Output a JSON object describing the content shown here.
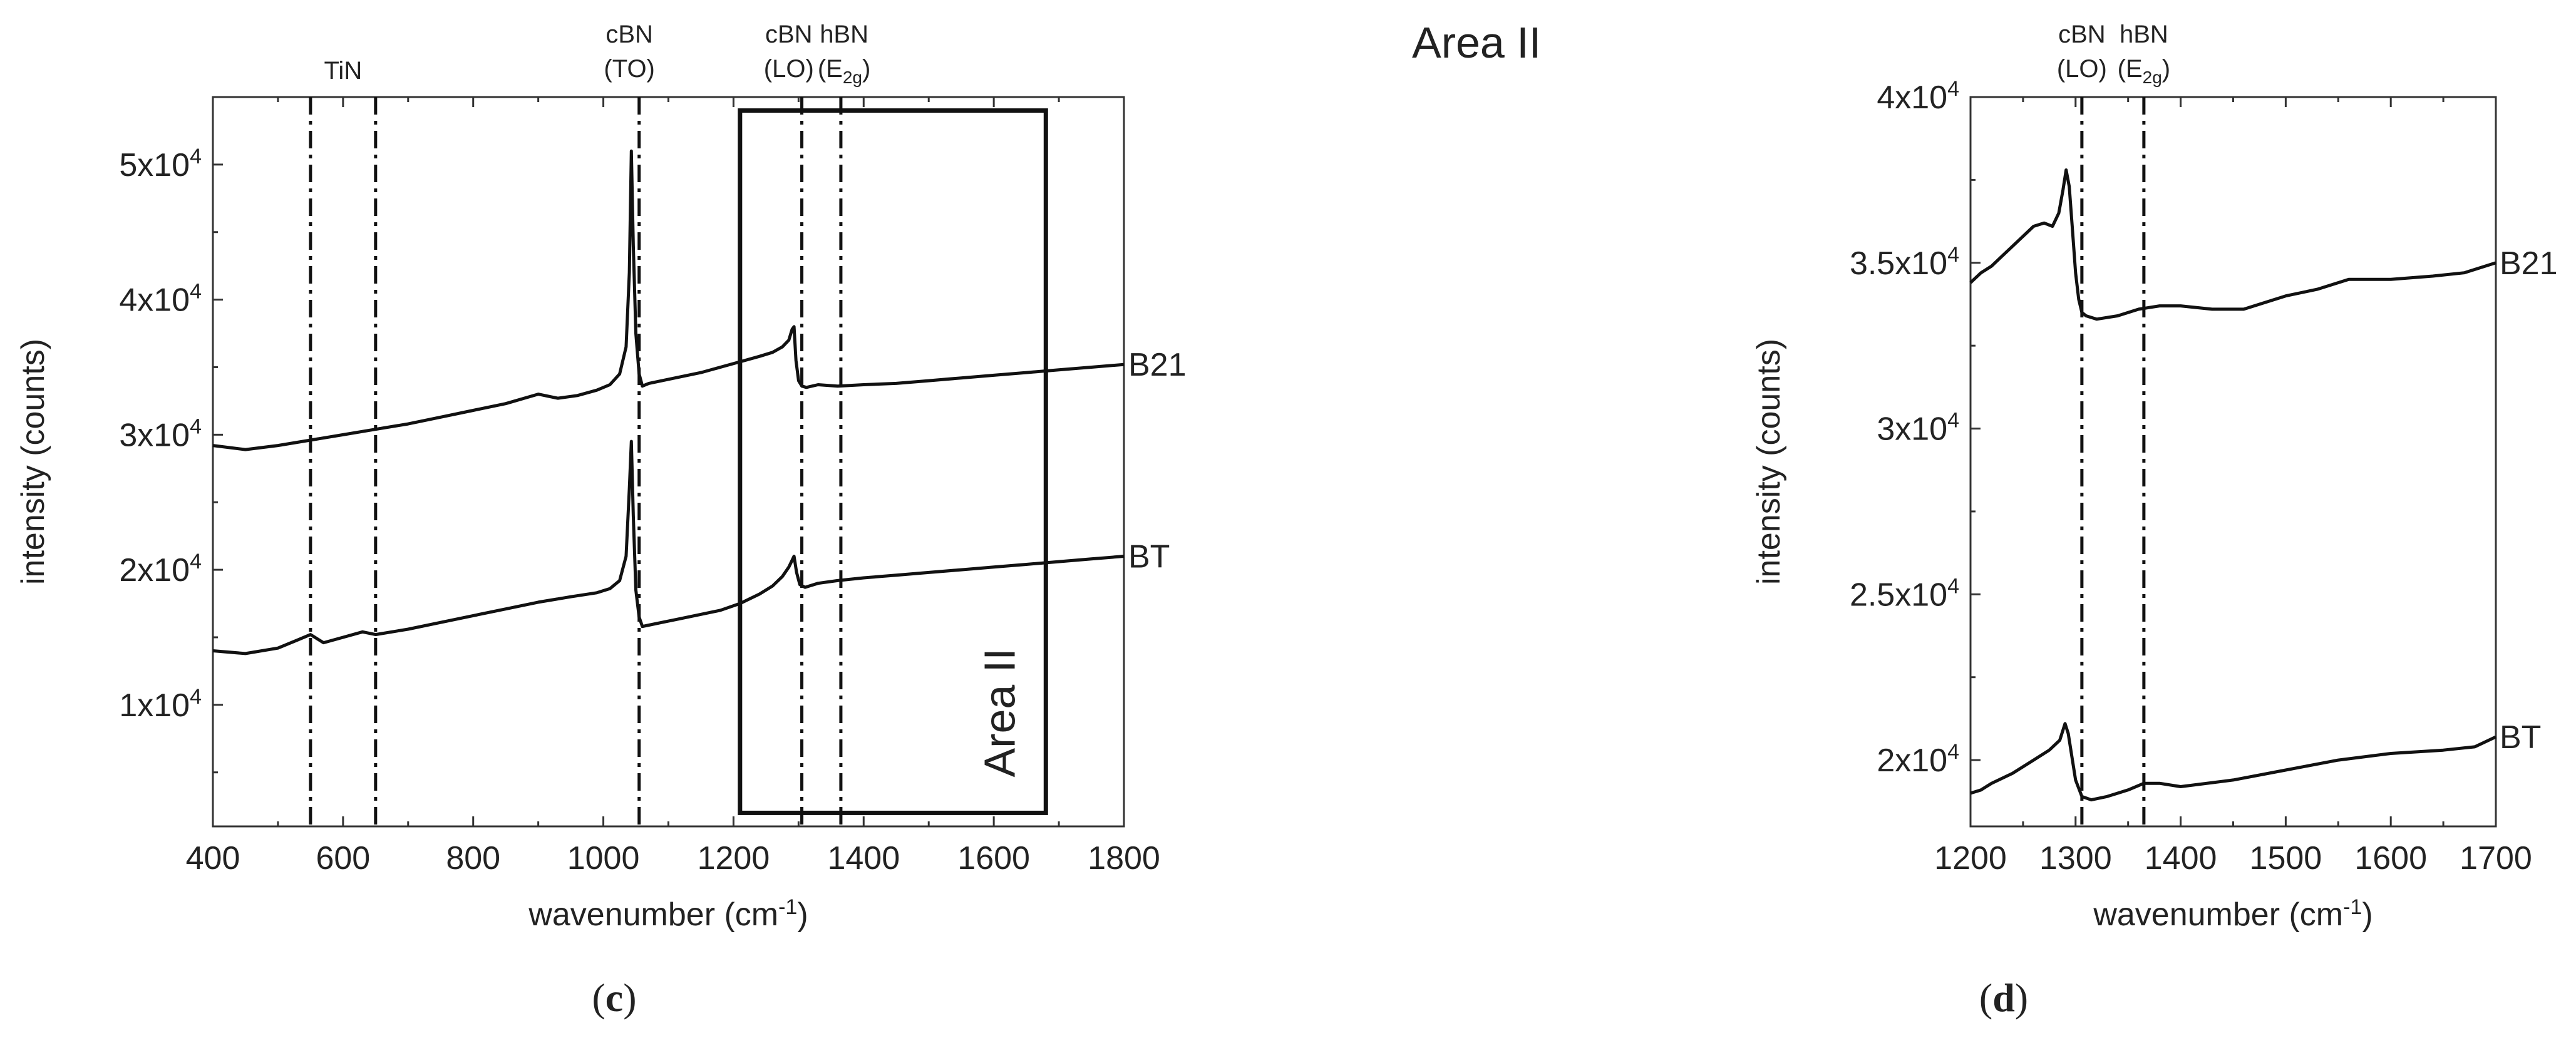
{
  "figure": {
    "panels": [
      {
        "label_open": "(",
        "label_letter": "c",
        "label_close": ")"
      },
      {
        "label_open": "(",
        "label_letter": "d",
        "label_close": ")"
      }
    ]
  },
  "chart_data": [
    {
      "type": "line",
      "panel": "c",
      "title": "",
      "xlabel": "wavenumber (cm⁻¹)",
      "xlabel_base": "wavenumber (cm",
      "xlabel_sup": "-1",
      "xlabel_end": ")",
      "ylabel": "intensity (counts)",
      "xlim": [
        400,
        1800
      ],
      "ylim": [
        1000,
        55000
      ],
      "x_ticks": [
        400,
        600,
        800,
        1000,
        1200,
        1400,
        1600,
        1800
      ],
      "x_tick_labels": [
        "400",
        "600",
        "800",
        "1000",
        "1200",
        "1400",
        "1600",
        "1800"
      ],
      "y_ticks": [
        10000,
        20000,
        30000,
        40000,
        50000
      ],
      "y_tick_labels": [
        {
          "base": "1x10",
          "exp": "4"
        },
        {
          "base": "2x10",
          "exp": "4"
        },
        {
          "base": "3x10",
          "exp": "4"
        },
        {
          "base": "4x10",
          "exp": "4"
        },
        {
          "base": "5x10",
          "exp": "4"
        }
      ],
      "reference_lines": [
        {
          "x": 550,
          "label_lines": [
            "TiN"
          ],
          "label_x": 600
        },
        {
          "x": 650,
          "label_lines": [],
          "label_x": 650
        },
        {
          "x": 1055,
          "label_lines": [
            "cBN",
            "(TO)"
          ],
          "label_x": 1040
        },
        {
          "x": 1305,
          "label_lines": [
            "cBN",
            "(LO)"
          ],
          "label_x": 1285
        },
        {
          "x": 1365,
          "label_lines": [
            "hBN",
            "(E2g)"
          ],
          "label_x": 1370
        }
      ],
      "annotation_box": {
        "x0": 1210,
        "x1": 1680,
        "y0": 2000,
        "y1": 54000,
        "label": "Area II"
      },
      "series": [
        {
          "name": "B21",
          "x": [
            400,
            450,
            500,
            550,
            600,
            650,
            700,
            750,
            800,
            850,
            900,
            930,
            960,
            990,
            1010,
            1025,
            1035,
            1040,
            1043,
            1046,
            1050,
            1055,
            1060,
            1070,
            1090,
            1120,
            1150,
            1180,
            1210,
            1240,
            1260,
            1275,
            1285,
            1290,
            1293,
            1296,
            1300,
            1305,
            1312,
            1330,
            1360,
            1400,
            1450,
            1500,
            1550,
            1600,
            1650,
            1700,
            1750,
            1800
          ],
          "values": [
            29200,
            28900,
            29200,
            29600,
            30000,
            30400,
            30800,
            31300,
            31800,
            32300,
            33000,
            32700,
            32900,
            33300,
            33700,
            34500,
            36500,
            42000,
            51000,
            44000,
            37500,
            34500,
            33600,
            33800,
            34000,
            34300,
            34600,
            35000,
            35400,
            35800,
            36100,
            36500,
            37000,
            37800,
            38000,
            35500,
            34000,
            33600,
            33500,
            33700,
            33600,
            33700,
            33800,
            34000,
            34200,
            34400,
            34600,
            34800,
            35000,
            35200
          ]
        },
        {
          "name": "BT",
          "x": [
            400,
            450,
            500,
            530,
            550,
            570,
            600,
            630,
            650,
            700,
            750,
            800,
            850,
            900,
            950,
            990,
            1010,
            1025,
            1035,
            1040,
            1043,
            1046,
            1050,
            1055,
            1060,
            1070,
            1090,
            1120,
            1150,
            1180,
            1210,
            1240,
            1260,
            1275,
            1285,
            1290,
            1293,
            1297,
            1302,
            1310,
            1330,
            1360,
            1400,
            1450,
            1500,
            1550,
            1600,
            1650,
            1700,
            1750,
            1800
          ],
          "values": [
            14000,
            13800,
            14200,
            14800,
            15200,
            14600,
            15000,
            15400,
            15200,
            15600,
            16100,
            16600,
            17100,
            17600,
            18000,
            18300,
            18600,
            19200,
            21000,
            26000,
            29500,
            24000,
            18500,
            16500,
            15800,
            15900,
            16100,
            16400,
            16700,
            17000,
            17500,
            18200,
            18800,
            19500,
            20200,
            20700,
            21000,
            19800,
            18900,
            18700,
            19000,
            19200,
            19400,
            19600,
            19800,
            20000,
            20200,
            20400,
            20600,
            20800,
            21000
          ]
        }
      ]
    },
    {
      "type": "line",
      "panel": "d",
      "title": "Area II",
      "xlabel": "wavenumber (cm⁻¹)",
      "xlabel_base": "wavenumber (cm",
      "xlabel_sup": "-1",
      "xlabel_end": ")",
      "ylabel": "intensity (counts)",
      "xlim": [
        1200,
        1700
      ],
      "ylim": [
        18000,
        40000
      ],
      "x_ticks": [
        1200,
        1300,
        1400,
        1500,
        1600,
        1700
      ],
      "x_tick_labels": [
        "1200",
        "1300",
        "1400",
        "1500",
        "1600",
        "1700"
      ],
      "y_ticks": [
        20000,
        25000,
        30000,
        35000,
        40000
      ],
      "y_tick_labels": [
        {
          "base": "2x10",
          "exp": "4"
        },
        {
          "base": "2.5x10",
          "exp": "4"
        },
        {
          "base": "3x10",
          "exp": "4"
        },
        {
          "base": "3.5x10",
          "exp": "4"
        },
        {
          "base": "4x10",
          "exp": "4"
        }
      ],
      "reference_lines": [
        {
          "x": 1306,
          "label_lines": [
            "cBN",
            "(LO)"
          ],
          "label_x": 1306
        },
        {
          "x": 1365,
          "label_lines": [
            "hBN",
            "(E2g)"
          ],
          "label_x": 1365
        }
      ],
      "series": [
        {
          "name": "B21",
          "x": [
            1200,
            1210,
            1220,
            1230,
            1240,
            1250,
            1260,
            1270,
            1278,
            1284,
            1288,
            1291,
            1294,
            1297,
            1300,
            1303,
            1306,
            1310,
            1320,
            1340,
            1360,
            1380,
            1400,
            1430,
            1460,
            1500,
            1530,
            1560,
            1600,
            1640,
            1670,
            1700
          ],
          "values": [
            34400,
            34700,
            34900,
            35200,
            35500,
            35800,
            36100,
            36200,
            36100,
            36500,
            37200,
            37800,
            37300,
            36000,
            34700,
            33900,
            33500,
            33400,
            33300,
            33400,
            33600,
            33700,
            33700,
            33600,
            33600,
            34000,
            34200,
            34500,
            34500,
            34600,
            34700,
            35000
          ]
        },
        {
          "name": "BT",
          "x": [
            1200,
            1210,
            1220,
            1240,
            1260,
            1275,
            1285,
            1290,
            1293,
            1296,
            1300,
            1306,
            1315,
            1330,
            1350,
            1365,
            1380,
            1400,
            1450,
            1500,
            1550,
            1600,
            1650,
            1680,
            1700
          ],
          "values": [
            19000,
            19100,
            19300,
            19600,
            20000,
            20300,
            20600,
            21100,
            20800,
            20200,
            19400,
            18900,
            18800,
            18900,
            19100,
            19300,
            19300,
            19200,
            19400,
            19700,
            20000,
            20200,
            20300,
            20400,
            20700
          ]
        }
      ]
    }
  ]
}
